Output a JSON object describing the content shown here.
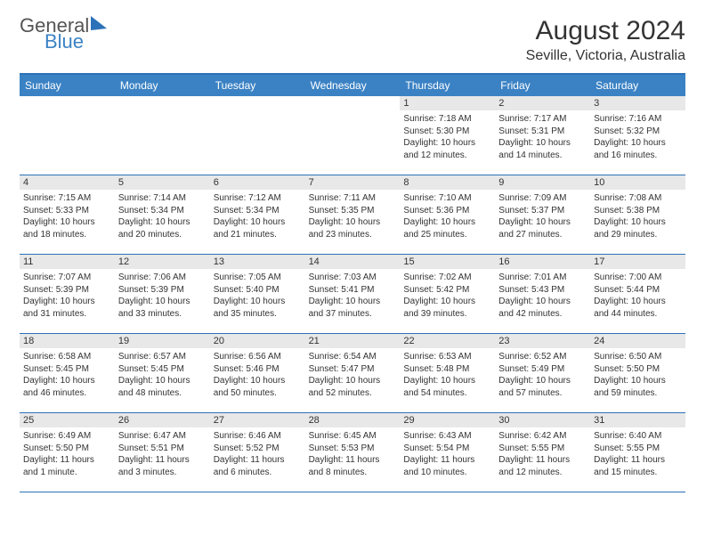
{
  "logo": {
    "line1": "General",
    "line2": "Blue"
  },
  "title": "August 2024",
  "location": "Seville, Victoria, Australia",
  "colors": {
    "header_bg": "#3b82c4",
    "border": "#2d72b8",
    "daynum_bg": "#e8e8e8",
    "text": "#333333",
    "header_text": "#ffffff"
  },
  "day_headers": [
    "Sunday",
    "Monday",
    "Tuesday",
    "Wednesday",
    "Thursday",
    "Friday",
    "Saturday"
  ],
  "weeks": [
    [
      null,
      null,
      null,
      null,
      {
        "n": "1",
        "sr": "Sunrise: 7:18 AM",
        "ss": "Sunset: 5:30 PM",
        "dl": "Daylight: 10 hours and 12 minutes."
      },
      {
        "n": "2",
        "sr": "Sunrise: 7:17 AM",
        "ss": "Sunset: 5:31 PM",
        "dl": "Daylight: 10 hours and 14 minutes."
      },
      {
        "n": "3",
        "sr": "Sunrise: 7:16 AM",
        "ss": "Sunset: 5:32 PM",
        "dl": "Daylight: 10 hours and 16 minutes."
      }
    ],
    [
      {
        "n": "4",
        "sr": "Sunrise: 7:15 AM",
        "ss": "Sunset: 5:33 PM",
        "dl": "Daylight: 10 hours and 18 minutes."
      },
      {
        "n": "5",
        "sr": "Sunrise: 7:14 AM",
        "ss": "Sunset: 5:34 PM",
        "dl": "Daylight: 10 hours and 20 minutes."
      },
      {
        "n": "6",
        "sr": "Sunrise: 7:12 AM",
        "ss": "Sunset: 5:34 PM",
        "dl": "Daylight: 10 hours and 21 minutes."
      },
      {
        "n": "7",
        "sr": "Sunrise: 7:11 AM",
        "ss": "Sunset: 5:35 PM",
        "dl": "Daylight: 10 hours and 23 minutes."
      },
      {
        "n": "8",
        "sr": "Sunrise: 7:10 AM",
        "ss": "Sunset: 5:36 PM",
        "dl": "Daylight: 10 hours and 25 minutes."
      },
      {
        "n": "9",
        "sr": "Sunrise: 7:09 AM",
        "ss": "Sunset: 5:37 PM",
        "dl": "Daylight: 10 hours and 27 minutes."
      },
      {
        "n": "10",
        "sr": "Sunrise: 7:08 AM",
        "ss": "Sunset: 5:38 PM",
        "dl": "Daylight: 10 hours and 29 minutes."
      }
    ],
    [
      {
        "n": "11",
        "sr": "Sunrise: 7:07 AM",
        "ss": "Sunset: 5:39 PM",
        "dl": "Daylight: 10 hours and 31 minutes."
      },
      {
        "n": "12",
        "sr": "Sunrise: 7:06 AM",
        "ss": "Sunset: 5:39 PM",
        "dl": "Daylight: 10 hours and 33 minutes."
      },
      {
        "n": "13",
        "sr": "Sunrise: 7:05 AM",
        "ss": "Sunset: 5:40 PM",
        "dl": "Daylight: 10 hours and 35 minutes."
      },
      {
        "n": "14",
        "sr": "Sunrise: 7:03 AM",
        "ss": "Sunset: 5:41 PM",
        "dl": "Daylight: 10 hours and 37 minutes."
      },
      {
        "n": "15",
        "sr": "Sunrise: 7:02 AM",
        "ss": "Sunset: 5:42 PM",
        "dl": "Daylight: 10 hours and 39 minutes."
      },
      {
        "n": "16",
        "sr": "Sunrise: 7:01 AM",
        "ss": "Sunset: 5:43 PM",
        "dl": "Daylight: 10 hours and 42 minutes."
      },
      {
        "n": "17",
        "sr": "Sunrise: 7:00 AM",
        "ss": "Sunset: 5:44 PM",
        "dl": "Daylight: 10 hours and 44 minutes."
      }
    ],
    [
      {
        "n": "18",
        "sr": "Sunrise: 6:58 AM",
        "ss": "Sunset: 5:45 PM",
        "dl": "Daylight: 10 hours and 46 minutes."
      },
      {
        "n": "19",
        "sr": "Sunrise: 6:57 AM",
        "ss": "Sunset: 5:45 PM",
        "dl": "Daylight: 10 hours and 48 minutes."
      },
      {
        "n": "20",
        "sr": "Sunrise: 6:56 AM",
        "ss": "Sunset: 5:46 PM",
        "dl": "Daylight: 10 hours and 50 minutes."
      },
      {
        "n": "21",
        "sr": "Sunrise: 6:54 AM",
        "ss": "Sunset: 5:47 PM",
        "dl": "Daylight: 10 hours and 52 minutes."
      },
      {
        "n": "22",
        "sr": "Sunrise: 6:53 AM",
        "ss": "Sunset: 5:48 PM",
        "dl": "Daylight: 10 hours and 54 minutes."
      },
      {
        "n": "23",
        "sr": "Sunrise: 6:52 AM",
        "ss": "Sunset: 5:49 PM",
        "dl": "Daylight: 10 hours and 57 minutes."
      },
      {
        "n": "24",
        "sr": "Sunrise: 6:50 AM",
        "ss": "Sunset: 5:50 PM",
        "dl": "Daylight: 10 hours and 59 minutes."
      }
    ],
    [
      {
        "n": "25",
        "sr": "Sunrise: 6:49 AM",
        "ss": "Sunset: 5:50 PM",
        "dl": "Daylight: 11 hours and 1 minute."
      },
      {
        "n": "26",
        "sr": "Sunrise: 6:47 AM",
        "ss": "Sunset: 5:51 PM",
        "dl": "Daylight: 11 hours and 3 minutes."
      },
      {
        "n": "27",
        "sr": "Sunrise: 6:46 AM",
        "ss": "Sunset: 5:52 PM",
        "dl": "Daylight: 11 hours and 6 minutes."
      },
      {
        "n": "28",
        "sr": "Sunrise: 6:45 AM",
        "ss": "Sunset: 5:53 PM",
        "dl": "Daylight: 11 hours and 8 minutes."
      },
      {
        "n": "29",
        "sr": "Sunrise: 6:43 AM",
        "ss": "Sunset: 5:54 PM",
        "dl": "Daylight: 11 hours and 10 minutes."
      },
      {
        "n": "30",
        "sr": "Sunrise: 6:42 AM",
        "ss": "Sunset: 5:55 PM",
        "dl": "Daylight: 11 hours and 12 minutes."
      },
      {
        "n": "31",
        "sr": "Sunrise: 6:40 AM",
        "ss": "Sunset: 5:55 PM",
        "dl": "Daylight: 11 hours and 15 minutes."
      }
    ]
  ]
}
